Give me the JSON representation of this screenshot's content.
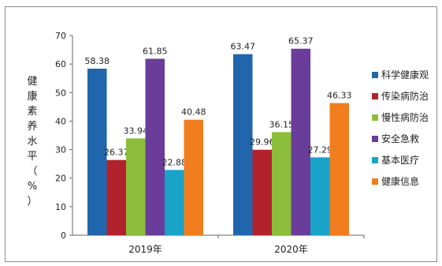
{
  "chart_data": {
    "type": "bar",
    "title": "",
    "xlabel": "",
    "ylabel": [
      "健",
      "康",
      "素",
      "养",
      "水",
      "平",
      "（",
      "%",
      "）"
    ],
    "ylim": [
      0,
      70
    ],
    "yticks": [
      0,
      10,
      20,
      30,
      40,
      50,
      60,
      70
    ],
    "categories": [
      "2019年",
      "2020年"
    ],
    "legend_position": "right",
    "grid": false,
    "series": [
      {
        "name": "科学健康观",
        "color": "#2166ac",
        "values": [
          58.38,
          63.47
        ]
      },
      {
        "name": "传染病防治",
        "color": "#b2222c",
        "values": [
          26.37,
          29.96
        ]
      },
      {
        "name": "慢性病防治",
        "color": "#8cbd3a",
        "values": [
          33.94,
          36.15
        ]
      },
      {
        "name": "安全急救",
        "color": "#6a3d9a",
        "values": [
          61.85,
          65.37
        ]
      },
      {
        "name": "基本医疗",
        "color": "#1aa3c8",
        "values": [
          22.88,
          27.29
        ]
      },
      {
        "name": "健康信息",
        "color": "#f07d1e",
        "values": [
          40.48,
          46.33
        ]
      }
    ]
  }
}
